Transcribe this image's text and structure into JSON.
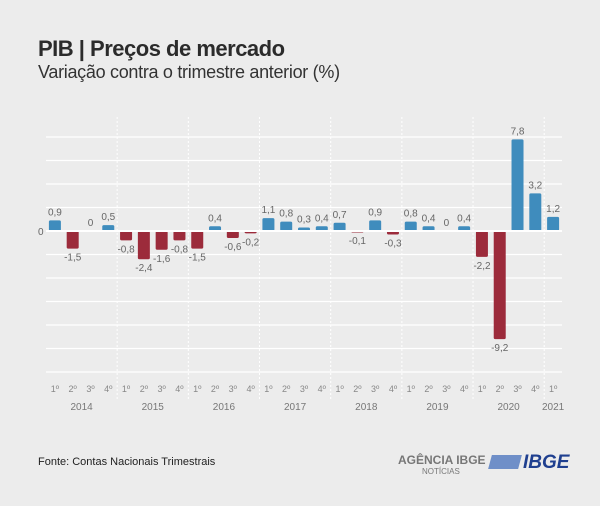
{
  "header": {
    "title": "PIB | Preços de mercado",
    "subtitle": "Variação contra o trimestre anterior (%)"
  },
  "footer": {
    "source": "Fonte: Contas Nacionais Trimestrais",
    "logo_agencia": "AGÊNCIA IBGE",
    "logo_agencia_sub": "NOTÍCIAS",
    "logo_ibge": "IBGE"
  },
  "chart_data": {
    "type": "bar",
    "title": "PIB | Preços de mercado",
    "subtitle": "Variação contra o trimestre anterior (%)",
    "ylim": [
      -12,
      8
    ],
    "grid": true,
    "zero_label": "0",
    "colors": {
      "positive": "#3f8cbd",
      "negative": "#9c2b3b"
    },
    "years": [
      {
        "year": "2014",
        "quarters": [
          "1º",
          "2º",
          "3º",
          "4º"
        ],
        "values": [
          0.9,
          -1.5,
          0,
          0.5
        ]
      },
      {
        "year": "2015",
        "quarters": [
          "1º",
          "2º",
          "3º",
          "4º"
        ],
        "values": [
          -0.8,
          -2.4,
          -1.6,
          -0.8
        ]
      },
      {
        "year": "2016",
        "quarters": [
          "1º",
          "2º",
          "3º",
          "4º"
        ],
        "values": [
          -1.5,
          0.4,
          -0.6,
          -0.2
        ]
      },
      {
        "year": "2017",
        "quarters": [
          "1º",
          "2º",
          "3º",
          "4º"
        ],
        "values": [
          1.1,
          0.8,
          0.3,
          0.4
        ]
      },
      {
        "year": "2018",
        "quarters": [
          "1º",
          "2º",
          "3º",
          "4º"
        ],
        "values": [
          0.7,
          -0.1,
          0.9,
          -0.3
        ]
      },
      {
        "year": "2019",
        "quarters": [
          "1º",
          "2º",
          "3º",
          "4º"
        ],
        "values": [
          0.8,
          0.4,
          0,
          0.4
        ]
      },
      {
        "year": "2020",
        "quarters": [
          "1º",
          "2º",
          "3º",
          "4º"
        ],
        "values": [
          -2.2,
          -9.2,
          7.8,
          3.2
        ]
      },
      {
        "year": "2021",
        "quarters": [
          "1º"
        ],
        "values": [
          1.2
        ]
      }
    ]
  }
}
